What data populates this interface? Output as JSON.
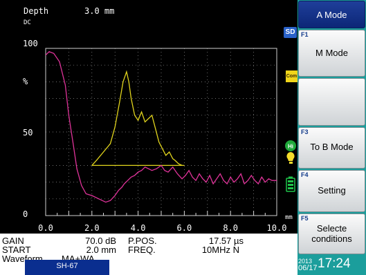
{
  "header": {
    "depth_label": "Depth",
    "depth_value": "3.0 mm",
    "dc_label": "DC"
  },
  "plot": {
    "y_axis_labels": [
      "100",
      "%",
      "50",
      "0"
    ],
    "x_tick_labels": [
      "0.0",
      "2.0",
      "4.0",
      "6.0",
      "8.0",
      "10.0"
    ],
    "x_unit": "mm",
    "colors": {
      "echo_trace": "#e0339a",
      "gate_trace": "#e2d51d",
      "gate_line": "#e2d51d"
    }
  },
  "chart_data": {
    "type": "line",
    "xlim": [
      0,
      10
    ],
    "ylim": [
      0,
      100
    ],
    "gate": {
      "x_start": 2.0,
      "x_end": 6.0,
      "level": 30
    },
    "series": [
      {
        "role": "echo",
        "x": [
          0.0,
          0.15,
          0.35,
          0.6,
          0.85,
          1.0,
          1.2,
          1.35,
          1.55,
          1.75,
          2.0,
          2.3,
          2.6,
          2.8,
          3.0,
          3.15,
          3.3,
          3.4,
          3.55,
          3.7,
          3.85,
          4.0,
          4.15,
          4.3,
          4.45,
          4.6,
          4.8,
          5.0,
          5.15,
          5.3,
          5.5,
          5.7,
          5.9,
          6.05,
          6.2,
          6.35,
          6.5,
          6.65,
          6.8,
          6.95,
          7.1,
          7.25,
          7.4,
          7.55,
          7.7,
          7.85,
          8.0,
          8.15,
          8.3,
          8.45,
          8.6,
          8.75,
          8.9,
          9.05,
          9.2,
          9.35,
          9.5,
          9.65,
          9.8,
          10.0
        ],
        "y": [
          96,
          98,
          97,
          92,
          78,
          60,
          42,
          28,
          18,
          13,
          12,
          10,
          8,
          9,
          12,
          15,
          17,
          19,
          21,
          23,
          24,
          26,
          27,
          29,
          28,
          27,
          28,
          30,
          27,
          26,
          29,
          25,
          22,
          24,
          27,
          23,
          21,
          25,
          22,
          20,
          24,
          19,
          22,
          25,
          21,
          19,
          23,
          20,
          22,
          25,
          19,
          21,
          24,
          21,
          19,
          23,
          20,
          22,
          21,
          21
        ]
      },
      {
        "role": "gated",
        "x": [
          2.0,
          2.2,
          2.5,
          2.8,
          3.0,
          3.2,
          3.35,
          3.5,
          3.6,
          3.7,
          3.85,
          4.0,
          4.15,
          4.3,
          4.45,
          4.6,
          4.75,
          4.9,
          5.05,
          5.2,
          5.35,
          5.5,
          5.6,
          5.75,
          5.9
        ],
        "y": [
          30,
          33,
          38,
          43,
          53,
          68,
          80,
          86,
          80,
          70,
          60,
          57,
          62,
          56,
          58,
          60,
          52,
          44,
          40,
          36,
          38,
          34,
          33,
          31,
          30
        ]
      }
    ]
  },
  "info": {
    "gain_label": "GAIN",
    "gain_value": "70.0 dB",
    "start_label": "START",
    "start_value": "2.0 mm",
    "waveform_label": "Waveform",
    "waveform_value": "MA+WA",
    "ppos_label": "P.POS.",
    "ppos_value": "17.57 µs",
    "freq_label": "FREQ.",
    "freq_value": "10MHz N",
    "probe_value": "SH-67"
  },
  "indicators": {
    "sd": "SD",
    "com": "Com",
    "hi": "Hi"
  },
  "menu": [
    {
      "fkey": "",
      "line1": "A Mode",
      "line2": "",
      "active": true
    },
    {
      "fkey": "F1",
      "line1": "M Mode",
      "line2": "",
      "active": false
    },
    {
      "fkey": "",
      "line1": "",
      "line2": "",
      "active": false
    },
    {
      "fkey": "F3",
      "line1": "To B Mode",
      "line2": "",
      "active": false
    },
    {
      "fkey": "F4",
      "line1": "Setting",
      "line2": "",
      "active": false
    },
    {
      "fkey": "F5",
      "line1": "Selecte",
      "line2": "conditions",
      "active": false
    }
  ],
  "datetime": {
    "year": "2013",
    "date": "06/17",
    "time": "17:24"
  }
}
